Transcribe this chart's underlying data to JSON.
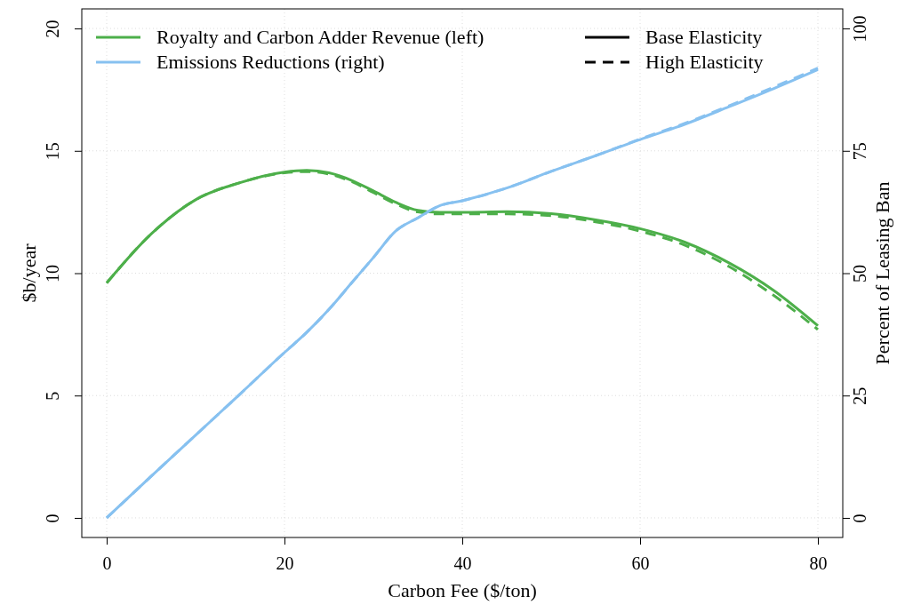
{
  "chart_data": {
    "type": "line",
    "xlabel": "Carbon Fee ($/ton)",
    "ylabel": "$b/year",
    "y2label": "Percent of Leasing Ban",
    "x": [
      0,
      5,
      10,
      15,
      20,
      22.5,
      25,
      27.5,
      30,
      32.5,
      35,
      37.5,
      40,
      45,
      50,
      55,
      60,
      65,
      70,
      75,
      80
    ],
    "series": [
      {
        "name": "Royalty and Carbon Adder Revenue (left)",
        "color": "#4daf4a",
        "line_style": "solid",
        "values": [
          9.6,
          11.6,
          13.0,
          13.7,
          14.13,
          14.2,
          14.1,
          13.8,
          13.36,
          12.9,
          12.57,
          12.49,
          12.49,
          12.51,
          12.43,
          12.18,
          11.82,
          11.27,
          10.42,
          9.3,
          7.85
        ]
      },
      {
        "color": "#4daf4a",
        "line_style": "dashed",
        "values": [
          9.6,
          11.6,
          13.0,
          13.7,
          14.1,
          14.15,
          14.05,
          13.75,
          13.3,
          12.83,
          12.5,
          12.42,
          12.42,
          12.42,
          12.35,
          12.1,
          11.72,
          11.15,
          10.27,
          9.1,
          7.7
        ]
      },
      {
        "name": "Emissions Reductions (right)",
        "color": "#87c1f0",
        "line_style": "solid",
        "axis": "y2",
        "values": [
          0,
          8.5,
          16.9,
          25.3,
          33.8,
          37.9,
          42.6,
          47.9,
          53.2,
          58.6,
          61.3,
          63.8,
          64.8,
          67.4,
          70.8,
          74.0,
          77.3,
          80.4,
          84.0,
          87.7,
          91.6
        ]
      },
      {
        "color": "#87c1f0",
        "line_style": "dashed",
        "axis": "y2",
        "values": [
          0,
          8.5,
          16.9,
          25.3,
          33.8,
          37.9,
          42.6,
          47.9,
          53.2,
          58.6,
          61.3,
          63.8,
          64.8,
          67.4,
          70.8,
          74.0,
          77.4,
          80.6,
          84.2,
          88.0,
          91.9
        ]
      }
    ],
    "annotations": [
      "Base Elasticity",
      "High Elasticity"
    ],
    "xlim": [
      -2.8,
      82.8
    ],
    "xticks": [
      0,
      20,
      40,
      60,
      80
    ],
    "ylim": [
      -0.8,
      20.8
    ],
    "yticks": [
      0,
      5,
      10,
      15,
      20
    ],
    "y2lim": [
      -4,
      104
    ],
    "y2ticks": [
      0,
      25,
      50,
      75,
      100
    ],
    "grid": true,
    "legend": "top"
  }
}
